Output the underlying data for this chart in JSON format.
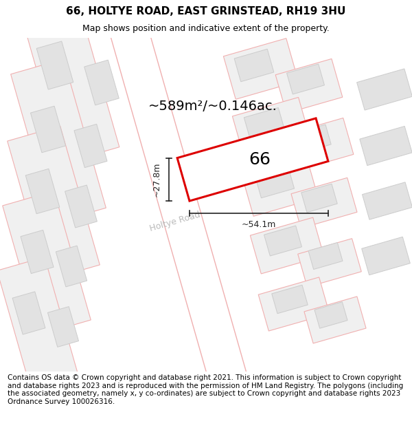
{
  "title": "66, HOLTYE ROAD, EAST GRINSTEAD, RH19 3HU",
  "subtitle": "Map shows position and indicative extent of the property.",
  "footer": "Contains OS data © Crown copyright and database right 2021. This information is subject to Crown copyright and database rights 2023 and is reproduced with the permission of HM Land Registry. The polygons (including the associated geometry, namely x, y co-ordinates) are subject to Crown copyright and database rights 2023 Ordnance Survey 100026316.",
  "area_label": "~589m²/~0.146ac.",
  "width_label": "~54.1m",
  "height_label": "~27.8m",
  "plot_number": "66",
  "bg_color": "#ffffff",
  "map_bg": "#ffffff",
  "parcel_fill": "#f0f0f0",
  "parcel_edge": "#f0b0b0",
  "building_fill": "#e2e2e2",
  "building_edge": "#cccccc",
  "road_fill": "#ffffff",
  "road_edge": "#f0b0b0",
  "plot_fill": "#ffffff",
  "plot_edge": "#dd0000",
  "road_label_color": "#bbbbbb",
  "dim_color": "#222222",
  "title_fontsize": 11,
  "subtitle_fontsize": 9,
  "footer_fontsize": 7.5,
  "area_fontsize": 14,
  "road_label_fontsize": 9,
  "dim_fontsize": 9,
  "plot_label_fontsize": 18
}
